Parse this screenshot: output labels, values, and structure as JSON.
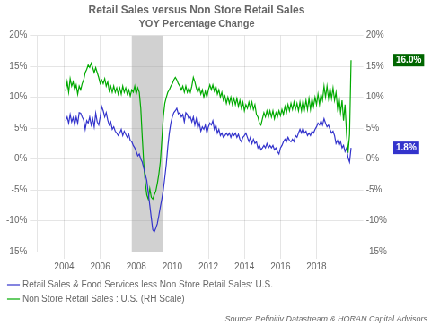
{
  "chart_data": {
    "type": "line",
    "title": "Retail Sales versus Non Store Retail Sales",
    "subtitle": "YOY Percentage Change",
    "source": "Source: Refinitiv Datastream & HORAN Capital Advisors",
    "x": [
      2004.083,
      2004.167,
      2004.25,
      2004.333,
      2004.417,
      2004.5,
      2004.583,
      2004.667,
      2004.75,
      2004.833,
      2004.917,
      2005,
      2005.083,
      2005.167,
      2005.25,
      2005.333,
      2005.417,
      2005.5,
      2005.583,
      2005.667,
      2005.75,
      2005.833,
      2005.917,
      2006,
      2006.083,
      2006.167,
      2006.25,
      2006.333,
      2006.417,
      2006.5,
      2006.583,
      2006.667,
      2006.75,
      2006.833,
      2006.917,
      2007,
      2007.083,
      2007.167,
      2007.25,
      2007.333,
      2007.417,
      2007.5,
      2007.583,
      2007.667,
      2007.75,
      2007.833,
      2007.917,
      2008,
      2008.083,
      2008.167,
      2008.25,
      2008.333,
      2008.417,
      2008.5,
      2008.583,
      2008.667,
      2008.75,
      2008.833,
      2008.917,
      2009,
      2009.083,
      2009.167,
      2009.25,
      2009.333,
      2009.417,
      2009.5,
      2009.583,
      2009.667,
      2009.75,
      2009.833,
      2009.917,
      2010,
      2010.083,
      2010.167,
      2010.25,
      2010.333,
      2010.417,
      2010.5,
      2010.583,
      2010.667,
      2010.75,
      2010.833,
      2010.917,
      2011,
      2011.083,
      2011.167,
      2011.25,
      2011.333,
      2011.417,
      2011.5,
      2011.583,
      2011.667,
      2011.75,
      2011.833,
      2011.917,
      2012,
      2012.083,
      2012.167,
      2012.25,
      2012.333,
      2012.417,
      2012.5,
      2012.583,
      2012.667,
      2012.75,
      2012.833,
      2012.917,
      2013,
      2013.083,
      2013.167,
      2013.25,
      2013.333,
      2013.417,
      2013.5,
      2013.583,
      2013.667,
      2013.75,
      2013.833,
      2013.917,
      2014,
      2014.083,
      2014.167,
      2014.25,
      2014.333,
      2014.417,
      2014.5,
      2014.583,
      2014.667,
      2014.75,
      2014.833,
      2014.917,
      2015,
      2015.083,
      2015.167,
      2015.25,
      2015.333,
      2015.417,
      2015.5,
      2015.583,
      2015.667,
      2015.75,
      2015.833,
      2015.917,
      2016,
      2016.083,
      2016.167,
      2016.25,
      2016.333,
      2016.417,
      2016.5,
      2016.583,
      2016.667,
      2016.75,
      2016.833,
      2016.917,
      2017,
      2017.083,
      2017.167,
      2017.25,
      2017.333,
      2017.417,
      2017.5,
      2017.583,
      2017.667,
      2017.75,
      2017.833,
      2017.917,
      2018,
      2018.083,
      2018.167,
      2018.25,
      2018.333,
      2018.417,
      2018.5,
      2018.583,
      2018.667,
      2018.75,
      2018.833,
      2018.917,
      2019,
      2019.083,
      2019.167,
      2019.25,
      2019.333,
      2019.417,
      2019.5,
      2019.583,
      2019.667,
      2019.75,
      2019.833,
      2019.917
    ],
    "series": [
      {
        "name": "Retail Sales & Food Services less Non Store Retail Sales: U.S.",
        "color": "#3333cc",
        "axis": "y",
        "values": [
          0.062,
          0.068,
          0.058,
          0.072,
          0.06,
          0.067,
          0.055,
          0.068,
          0.058,
          0.075,
          0.074,
          0.068,
          0.063,
          0.048,
          0.062,
          0.058,
          0.068,
          0.055,
          0.065,
          0.052,
          0.074,
          0.06,
          0.055,
          0.068,
          0.085,
          0.078,
          0.068,
          0.075,
          0.063,
          0.055,
          0.06,
          0.048,
          0.052,
          0.045,
          0.042,
          0.038,
          0.042,
          0.048,
          0.038,
          0.045,
          0.04,
          0.035,
          0.04,
          0.03,
          0.028,
          0.022,
          0.018,
          0.012,
          0.005,
          0.008,
          0.0,
          -0.005,
          -0.015,
          -0.025,
          -0.035,
          -0.055,
          -0.075,
          -0.095,
          -0.115,
          -0.118,
          -0.112,
          -0.105,
          -0.092,
          -0.078,
          -0.065,
          -0.05,
          -0.03,
          -0.008,
          0.02,
          0.042,
          0.058,
          0.068,
          0.075,
          0.078,
          0.082,
          0.073,
          0.075,
          0.068,
          0.072,
          0.06,
          0.075,
          0.072,
          0.065,
          0.068,
          0.06,
          0.068,
          0.055,
          0.065,
          0.05,
          0.058,
          0.045,
          0.052,
          0.048,
          0.055,
          0.042,
          0.052,
          0.058,
          0.055,
          0.062,
          0.048,
          0.055,
          0.042,
          0.048,
          0.038,
          0.042,
          0.035,
          0.038,
          0.042,
          0.038,
          0.042,
          0.035,
          0.042,
          0.038,
          0.042,
          0.035,
          0.04,
          0.032,
          0.028,
          0.035,
          0.038,
          0.042,
          0.035,
          0.028,
          0.035,
          0.025,
          0.032,
          0.025,
          0.028,
          0.018,
          0.022,
          0.015,
          0.018,
          0.022,
          0.018,
          0.025,
          0.018,
          0.022,
          0.018,
          0.022,
          0.015,
          0.018,
          0.012,
          0.008,
          0.018,
          0.022,
          0.028,
          0.032,
          0.028,
          0.035,
          0.03,
          0.028,
          0.032,
          0.028,
          0.038,
          0.035,
          0.042,
          0.048,
          0.042,
          0.05,
          0.042,
          0.045,
          0.038,
          0.042,
          0.038,
          0.045,
          0.042,
          0.048,
          0.052,
          0.058,
          0.055,
          0.062,
          0.055,
          0.065,
          0.058,
          0.052,
          0.055,
          0.048,
          0.042,
          0.045,
          0.038,
          0.025,
          0.03,
          0.022,
          0.028,
          0.018,
          0.022,
          0.012,
          0.018,
          0.002,
          -0.005,
          0.018
        ]
      },
      {
        "name": "Non Store Retail Sales : U.S. (RH Scale)",
        "color": "#00aa00",
        "axis": "y2",
        "values": [
          0.11,
          0.125,
          0.108,
          0.13,
          0.118,
          0.125,
          0.112,
          0.12,
          0.105,
          0.118,
          0.112,
          0.122,
          0.128,
          0.14,
          0.145,
          0.152,
          0.148,
          0.155,
          0.148,
          0.14,
          0.148,
          0.14,
          0.132,
          0.122,
          0.128,
          0.122,
          0.13,
          0.118,
          0.125,
          0.11,
          0.118,
          0.108,
          0.118,
          0.108,
          0.115,
          0.105,
          0.115,
          0.105,
          0.118,
          0.108,
          0.115,
          0.105,
          0.112,
          0.102,
          0.112,
          0.108,
          0.118,
          0.105,
          0.115,
          0.108,
          0.082,
          0.035,
          -0.008,
          -0.038,
          -0.058,
          -0.065,
          -0.048,
          -0.062,
          -0.065,
          -0.058,
          -0.052,
          -0.04,
          -0.025,
          -0.005,
          0.03,
          0.068,
          0.09,
          0.1,
          0.108,
          0.112,
          0.118,
          0.122,
          0.128,
          0.132,
          0.128,
          0.122,
          0.118,
          0.112,
          0.118,
          0.108,
          0.118,
          0.108,
          0.115,
          0.108,
          0.118,
          0.132,
          0.125,
          0.115,
          0.108,
          0.115,
          0.105,
          0.112,
          0.1,
          0.11,
          0.1,
          0.112,
          0.12,
          0.112,
          0.12,
          0.11,
          0.118,
          0.105,
          0.112,
          0.1,
          0.108,
          0.095,
          0.102,
          0.09,
          0.1,
          0.09,
          0.1,
          0.088,
          0.098,
          0.088,
          0.098,
          0.085,
          0.095,
          0.082,
          0.092,
          0.078,
          0.088,
          0.082,
          0.092,
          0.082,
          0.092,
          0.08,
          0.088,
          0.072,
          0.068,
          0.058,
          0.055,
          0.065,
          0.075,
          0.068,
          0.078,
          0.068,
          0.078,
          0.068,
          0.078,
          0.065,
          0.075,
          0.068,
          0.078,
          0.07,
          0.08,
          0.072,
          0.085,
          0.075,
          0.088,
          0.078,
          0.09,
          0.08,
          0.092,
          0.08,
          0.09,
          0.078,
          0.092,
          0.078,
          0.095,
          0.08,
          0.095,
          0.08,
          0.098,
          0.08,
          0.098,
          0.085,
          0.1,
          0.088,
          0.105,
          0.088,
          0.105,
          0.095,
          0.118,
          0.1,
          0.118,
          0.098,
          0.115,
          0.098,
          0.115,
          0.095,
          0.108,
          0.082,
          0.1,
          0.075,
          0.095,
          0.062,
          0.088,
          0.04,
          0.01,
          0.04,
          0.16
        ]
      }
    ],
    "xlim": [
      2002.5,
      2020.2
    ],
    "xticks": [
      2004,
      2006,
      2008,
      2010,
      2012,
      2014,
      2016,
      2018
    ],
    "ylim": [
      -0.15,
      0.2
    ],
    "yticks": [
      {
        "value": -0.15,
        "label": "-15%"
      },
      {
        "value": -0.1,
        "label": "-10%"
      },
      {
        "value": -0.05,
        "label": "-5%"
      },
      {
        "value": 0,
        "label": "0%"
      },
      {
        "value": 0.05,
        "label": "5%"
      },
      {
        "value": 0.1,
        "label": "10%"
      },
      {
        "value": 0.15,
        "label": "15%"
      },
      {
        "value": 0.2,
        "label": "20%"
      }
    ],
    "y2lim": [
      -0.15,
      0.2
    ],
    "y2ticks": [
      {
        "value": -0.15,
        "label": "-15%"
      },
      {
        "value": -0.1,
        "label": "-10%"
      },
      {
        "value": -0.05,
        "label": "-5%"
      },
      {
        "value": 0,
        "label": "0%"
      },
      {
        "value": 0.05,
        "label": "5%"
      },
      {
        "value": 0.1,
        "label": "10%"
      },
      {
        "value": 0.15,
        "label": "15%"
      },
      {
        "value": 0.2,
        "label": "20%"
      }
    ],
    "shaded_spans": [
      {
        "from": 2007.75,
        "to": 2009.5,
        "color": "#999999"
      }
    ],
    "annotations": [
      {
        "text": "1.8%",
        "y": 0.018,
        "axis": "y2",
        "color": "#3333cc"
      },
      {
        "text": "16.0%",
        "y": 0.16,
        "axis": "y2",
        "color": "#006600"
      }
    ],
    "grid": true,
    "legend": "bottom"
  }
}
